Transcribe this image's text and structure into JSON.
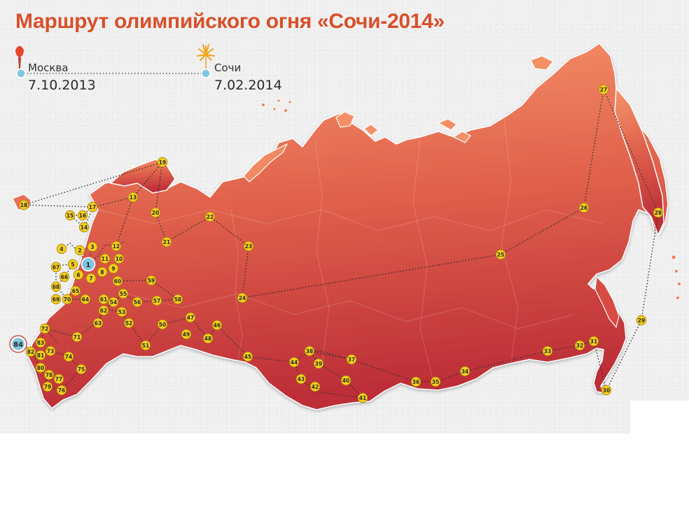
{
  "title": "Маршрут олимпийского огня «Сочи-2014»",
  "route": {
    "start": {
      "city": "Москва",
      "date": "7.10.2013"
    },
    "end": {
      "city": "Сочи",
      "date": "7.02.2014"
    }
  },
  "stops": [
    "1",
    "2",
    "3",
    "4",
    "5",
    "6",
    "7",
    "8",
    "9",
    "10",
    "11",
    "12",
    "13",
    "14",
    "15",
    "16",
    "17",
    "18",
    "19",
    "20",
    "21",
    "22",
    "23",
    "24",
    "25",
    "26",
    "27",
    "28",
    "29",
    "30",
    "31",
    "32",
    "33",
    "34",
    "35",
    "36",
    "37",
    "38",
    "39",
    "40",
    "41",
    "42",
    "43",
    "44",
    "45",
    "46",
    "47",
    "48",
    "49",
    "50",
    "51",
    "52",
    "53",
    "54",
    "55",
    "56",
    "57",
    "58",
    "59",
    "60",
    "61",
    "62",
    "63",
    "64",
    "65",
    "66",
    "67",
    "68",
    "69",
    "70",
    "71",
    "72",
    "73",
    "74",
    "75",
    "76",
    "77",
    "78",
    "79",
    "80",
    "81",
    "82",
    "83",
    "84"
  ],
  "colors": {
    "title": "#d8502a",
    "land_top": "#f49065",
    "land_bottom": "#c0303a",
    "marker_fill": "#f6cf1e",
    "marker_start": "#7fc6e0",
    "route_line": "#333333"
  },
  "icons": {
    "start": "torch-icon",
    "end": "firework-icon"
  }
}
